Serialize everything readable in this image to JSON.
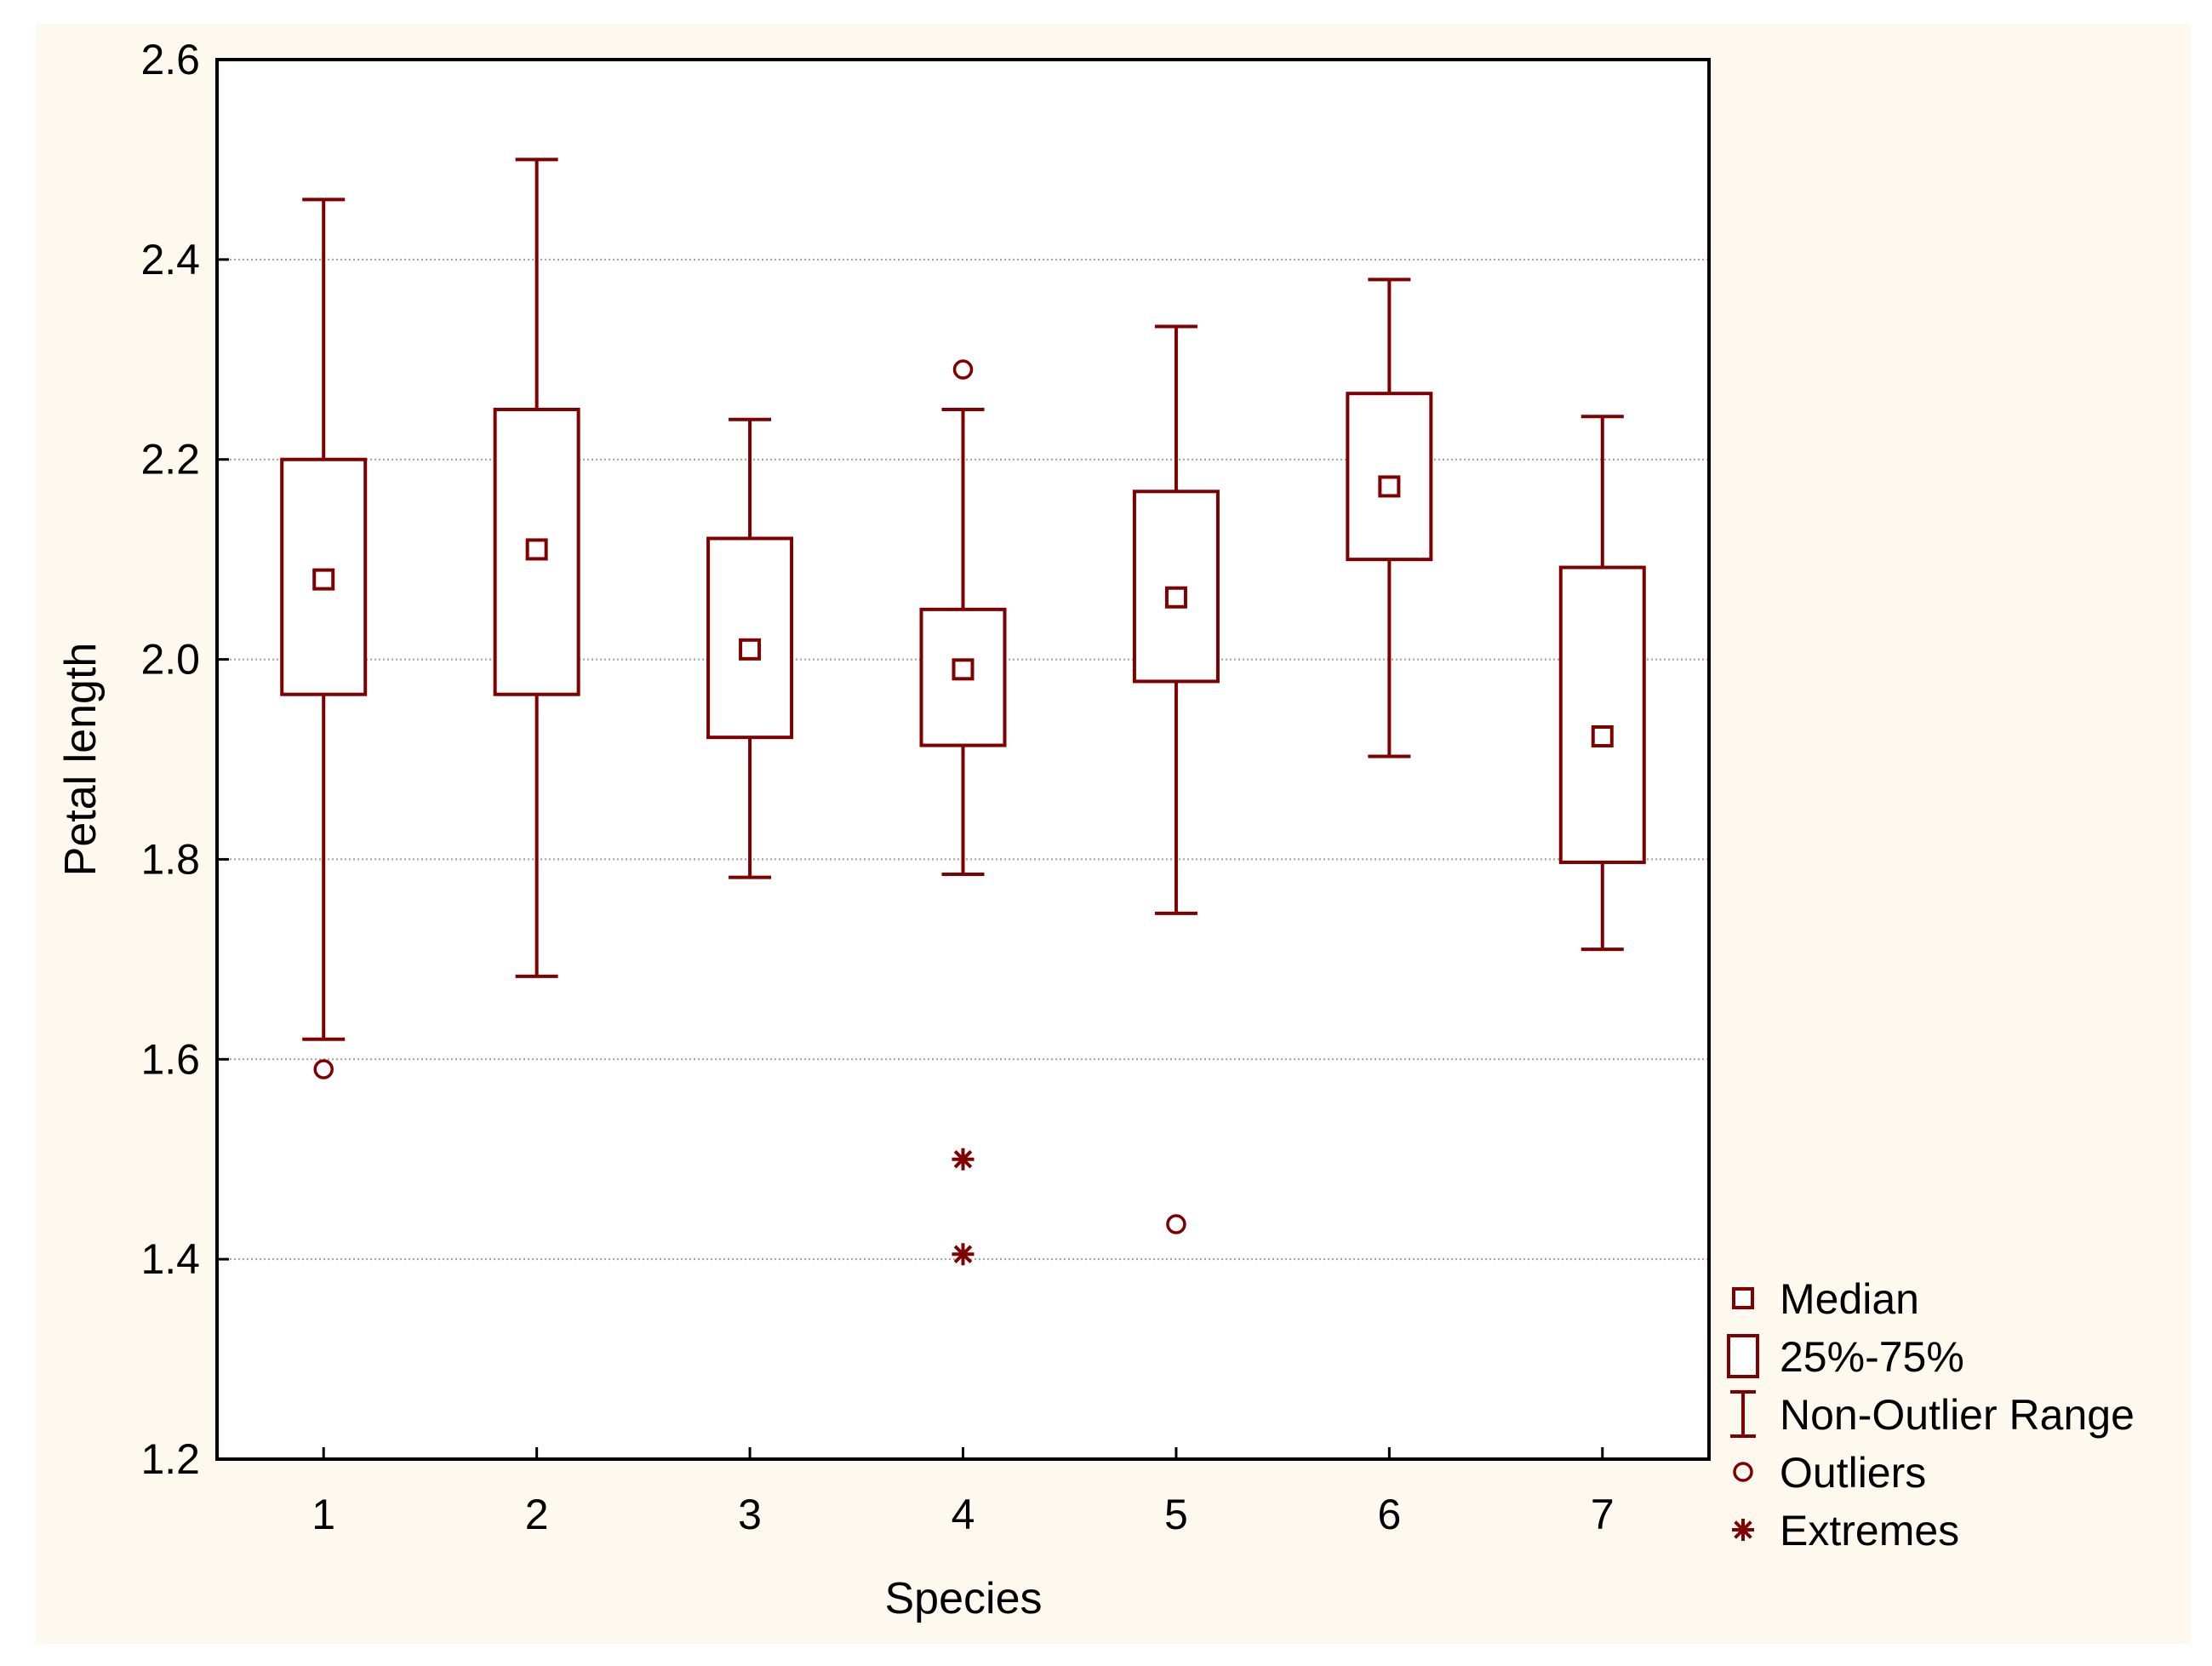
{
  "chart_data": {
    "type": "boxplot",
    "title": "",
    "xlabel": "Species",
    "ylabel": "Petal length",
    "ylim": [
      1.2,
      2.6
    ],
    "yticks": [
      "1.2",
      "1.4",
      "1.6",
      "1.8",
      "2.0",
      "2.2",
      "2.4",
      "2.6"
    ],
    "categories": [
      "1",
      "2",
      "3",
      "4",
      "5",
      "6",
      "7"
    ],
    "grid": "horizontal dotted",
    "legend_position": "right-bottom",
    "colors": {
      "series": "#7f0000",
      "background": "#fdf9ef",
      "plot_background": "#ffffff",
      "grid": "#a0a0a0",
      "axis": "#000000"
    },
    "boxes": [
      {
        "category": "1",
        "median": 2.08,
        "q1": 1.965,
        "q3": 2.2,
        "whisker_low": 1.62,
        "whisker_high": 2.46,
        "outliers": [
          1.59
        ],
        "extremes": []
      },
      {
        "category": "2",
        "median": 2.11,
        "q1": 1.965,
        "q3": 2.25,
        "whisker_low": 1.683,
        "whisker_high": 2.5,
        "outliers": [],
        "extremes": []
      },
      {
        "category": "3",
        "median": 2.01,
        "q1": 1.922,
        "q3": 2.121,
        "whisker_low": 1.782,
        "whisker_high": 2.24,
        "outliers": [],
        "extremes": []
      },
      {
        "category": "4",
        "median": 1.99,
        "q1": 1.914,
        "q3": 2.05,
        "whisker_low": 1.785,
        "whisker_high": 2.25,
        "outliers": [
          2.29
        ],
        "extremes": [
          1.5,
          1.405
        ]
      },
      {
        "category": "5",
        "median": 2.062,
        "q1": 1.978,
        "q3": 2.168,
        "whisker_low": 1.746,
        "whisker_high": 2.333,
        "outliers": [
          1.435
        ],
        "extremes": []
      },
      {
        "category": "6",
        "median": 2.173,
        "q1": 2.1,
        "q3": 2.266,
        "whisker_low": 1.903,
        "whisker_high": 2.38,
        "outliers": [],
        "extremes": []
      },
      {
        "category": "7",
        "median": 1.923,
        "q1": 1.797,
        "q3": 2.092,
        "whisker_low": 1.71,
        "whisker_high": 2.243,
        "outliers": [],
        "extremes": []
      }
    ],
    "legend": [
      {
        "key": "median",
        "label": "Median",
        "icon": "small-square-icon"
      },
      {
        "key": "box",
        "label": "25%-75%",
        "icon": "box-icon"
      },
      {
        "key": "whisker",
        "label": "Non-Outlier Range",
        "icon": "whisker-icon"
      },
      {
        "key": "outlier",
        "label": "Outliers",
        "icon": "circle-icon"
      },
      {
        "key": "extreme",
        "label": "Extremes",
        "icon": "asterisk-icon"
      }
    ]
  }
}
